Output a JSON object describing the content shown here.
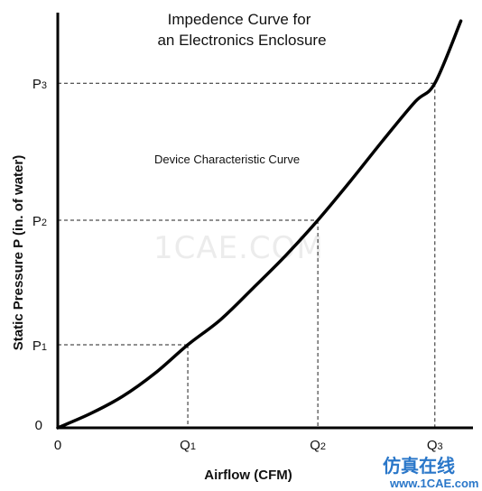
{
  "chart_data": {
    "type": "line",
    "title": [
      "Impedence Curve for",
      "an Electronics Enclosure"
    ],
    "xlabel": "Airflow (CFM)",
    "ylabel": "Static Pressure P (in. of water)",
    "annotation": "Device Characteristic Curve",
    "origin_label": "0",
    "x_ticks": [
      {
        "main": "Q",
        "sub": "1",
        "value": 1.0
      },
      {
        "main": "Q",
        "sub": "2",
        "value": 2.0
      },
      {
        "main": "Q",
        "sub": "3",
        "value": 2.9
      }
    ],
    "y_ticks": [
      {
        "main": "P",
        "sub": "1",
        "value": 1.0
      },
      {
        "main": "P",
        "sub": "2",
        "value": 2.5
      },
      {
        "main": "P",
        "sub": "3",
        "value": 4.15
      }
    ],
    "xlim": [
      0,
      3.2
    ],
    "ylim": [
      0,
      5.0
    ],
    "series": [
      {
        "x": [
          0,
          0.25,
          0.5,
          0.75,
          1.0,
          1.25,
          1.5,
          1.75,
          2.0,
          2.25,
          2.5,
          2.75,
          2.9,
          3.1
        ],
        "y": [
          0,
          0.17,
          0.38,
          0.66,
          1.0,
          1.3,
          1.68,
          2.07,
          2.5,
          2.97,
          3.46,
          3.93,
          4.15,
          4.9
        ]
      }
    ],
    "grid": false,
    "legend": "none"
  },
  "branding": {
    "watermark": "1CAE.COM",
    "logo_cn": "仿真在线",
    "logo_url": "www.1CAE.com"
  }
}
